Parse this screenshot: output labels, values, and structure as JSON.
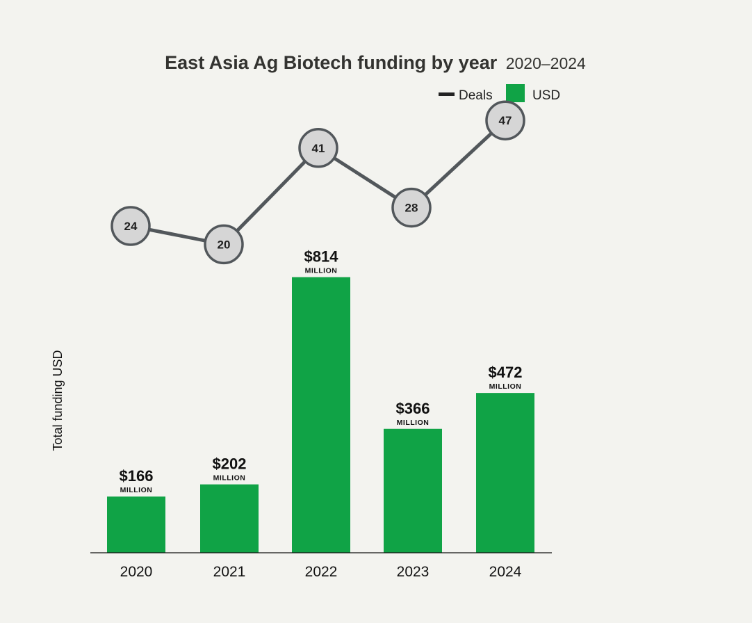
{
  "chart_data": {
    "type": "bar",
    "title": "East Asia Ag Biotech funding by year",
    "subtitle": "2020–2024",
    "ylabel": "Total funding USD",
    "xlabel": "",
    "categories": [
      "2020",
      "2021",
      "2022",
      "2023",
      "2024"
    ],
    "series": [
      {
        "name": "USD",
        "kind": "bar",
        "values": [
          166,
          202,
          814,
          366,
          472
        ],
        "labels": [
          "$166",
          "$202",
          "$814",
          "$366",
          "$472"
        ],
        "unit_label": "MILLION",
        "color": "#10a346"
      },
      {
        "name": "Deals",
        "kind": "line",
        "values": [
          24,
          20,
          41,
          28,
          47
        ],
        "color": "#52575b"
      }
    ],
    "legend": {
      "position": "top-right",
      "entries": [
        "Deals",
        "USD"
      ]
    },
    "grid": false
  },
  "colors": {
    "background": "#f3f3ef",
    "bar": "#10a346",
    "line": "#52575b",
    "marker_fill": "#d6d6d6",
    "text": "#111111"
  }
}
